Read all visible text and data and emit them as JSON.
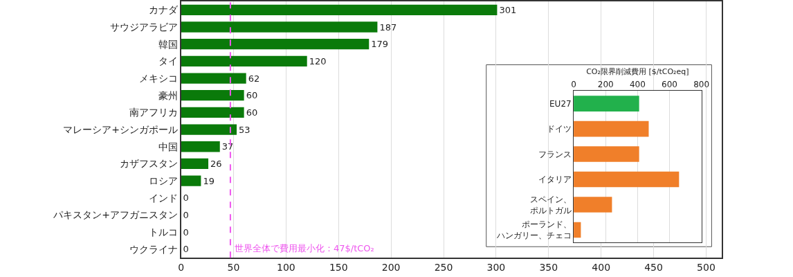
{
  "chart_data": [
    {
      "type": "bar",
      "orientation": "horizontal",
      "categories": [
        "カナダ",
        "サウジアラビア",
        "韓国",
        "タイ",
        "メキシコ",
        "豪州",
        "南アフリカ",
        "マレーシア+シンガポール",
        "中国",
        "カザフスタン",
        "ロシア",
        "インド",
        "パキスタン+アフガニスタン",
        "トルコ",
        "ウクライナ"
      ],
      "values": [
        301,
        187,
        179,
        120,
        62,
        60,
        60,
        53,
        37,
        26,
        19,
        0,
        0,
        0,
        0
      ],
      "color": "#0a7a0a",
      "data_labels": true,
      "xlim": [
        0,
        515
      ],
      "xticks": [
        0,
        50,
        100,
        150,
        200,
        250,
        300,
        350,
        400,
        450,
        500
      ],
      "grid": "x",
      "ref_lines": [
        {
          "axis": "x",
          "value": 47,
          "label": "世界全体で費用最小化：47$/tCO₂",
          "color": "#ee55ee",
          "line_style": "dashed"
        }
      ]
    },
    {
      "type": "bar",
      "orientation": "horizontal",
      "xlabel": "CO₂限界削減費用 [$/tCO₂eq]",
      "categories": [
        "EU27",
        "ドイツ",
        "フランス",
        "イタリア",
        "スペイン、ポルトガル",
        "ポーランド、ハンガリー、チェコ"
      ],
      "values": [
        410,
        470,
        410,
        660,
        240,
        45
      ],
      "colors": [
        "#22b14c",
        "#f07f2a",
        "#f07f2a",
        "#f07f2a",
        "#f07f2a",
        "#f07f2a"
      ],
      "xlim": [
        0,
        800
      ],
      "xticks": [
        0,
        200,
        400,
        600,
        800
      ],
      "grid": "x"
    }
  ]
}
